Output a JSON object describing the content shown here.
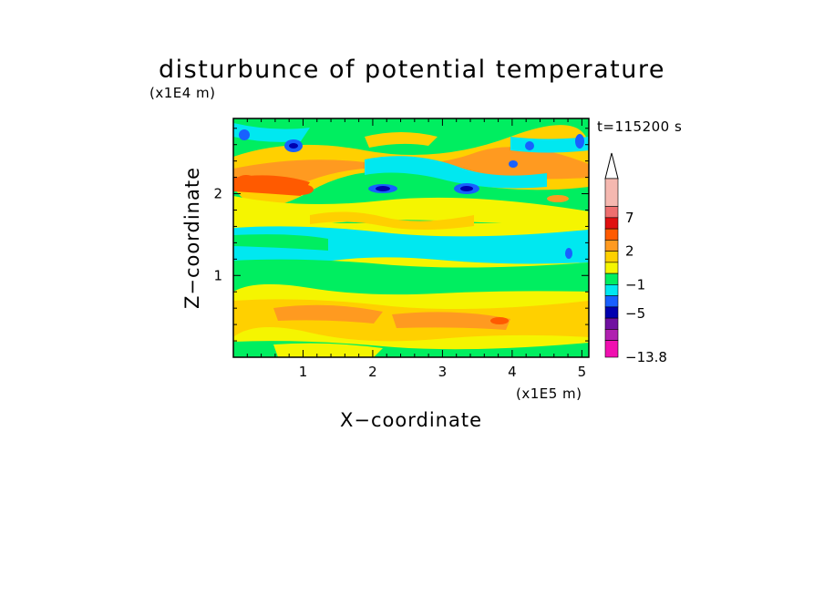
{
  "chart_data": {
    "type": "heatmap",
    "title": "disturbunce of potential temperature",
    "y_scale_label": "(x1E4 m)",
    "x_scale_label": "(x1E5 m)",
    "time_label": "t=115200 s",
    "xlabel": "X−coordinate",
    "ylabel": "Z−coordinate",
    "xlim": [
      0,
      5.1
    ],
    "ylim": [
      0,
      2.92
    ],
    "x_ticks": [
      1,
      2,
      3,
      4,
      5
    ],
    "x_tick_labels": [
      "1",
      "2",
      "3",
      "4",
      "5"
    ],
    "y_ticks": [
      1,
      2
    ],
    "y_tick_labels": [
      "1",
      "2"
    ],
    "colorbar": {
      "extend": "max",
      "labels": [
        "7",
        "2",
        "−1",
        "−5",
        "−13.8"
      ],
      "label_values": [
        7,
        2,
        -1,
        -5,
        -13.8
      ],
      "colors_top_to_bottom": [
        "#f5b8b0",
        "#ee6f6f",
        "#e01010",
        "#ff5a00",
        "#ff9a20",
        "#ffd000",
        "#f5f500",
        "#00ee60",
        "#00e8f0",
        "#1860ff",
        "#0000b0",
        "#7010a0",
        "#b020b0",
        "#f010b0"
      ]
    },
    "bands": [
      {
        "z_range": [
          0,
          0.12
        ],
        "dominant": "yellow/green mix",
        "level_range": [
          0,
          3
        ]
      },
      {
        "z_range": [
          0.12,
          0.45
        ],
        "dominant": "orange/yellow",
        "level_range": [
          1,
          3
        ]
      },
      {
        "z_range": [
          0.45,
          0.9
        ],
        "dominant": "yellow",
        "level_range": [
          0,
          2
        ]
      },
      {
        "z_range": [
          0.9,
          1.15
        ],
        "dominant": "green",
        "level_range": [
          -1,
          0
        ]
      },
      {
        "z_range": [
          1.15,
          1.45
        ],
        "dominant": "cyan",
        "level_range": [
          -2,
          -1
        ]
      },
      {
        "z_range": [
          1.45,
          1.9
        ],
        "dominant": "yellow/orange",
        "level_range": [
          1,
          3
        ]
      },
      {
        "z_range": [
          1.9,
          2.3
        ],
        "dominant": "green/cyan with blue cells",
        "level_range": [
          -5,
          3
        ]
      },
      {
        "z_range": [
          2.3,
          2.92
        ],
        "dominant": "mixed orange/green/blue",
        "level_range": [
          -5,
          5
        ]
      }
    ]
  }
}
